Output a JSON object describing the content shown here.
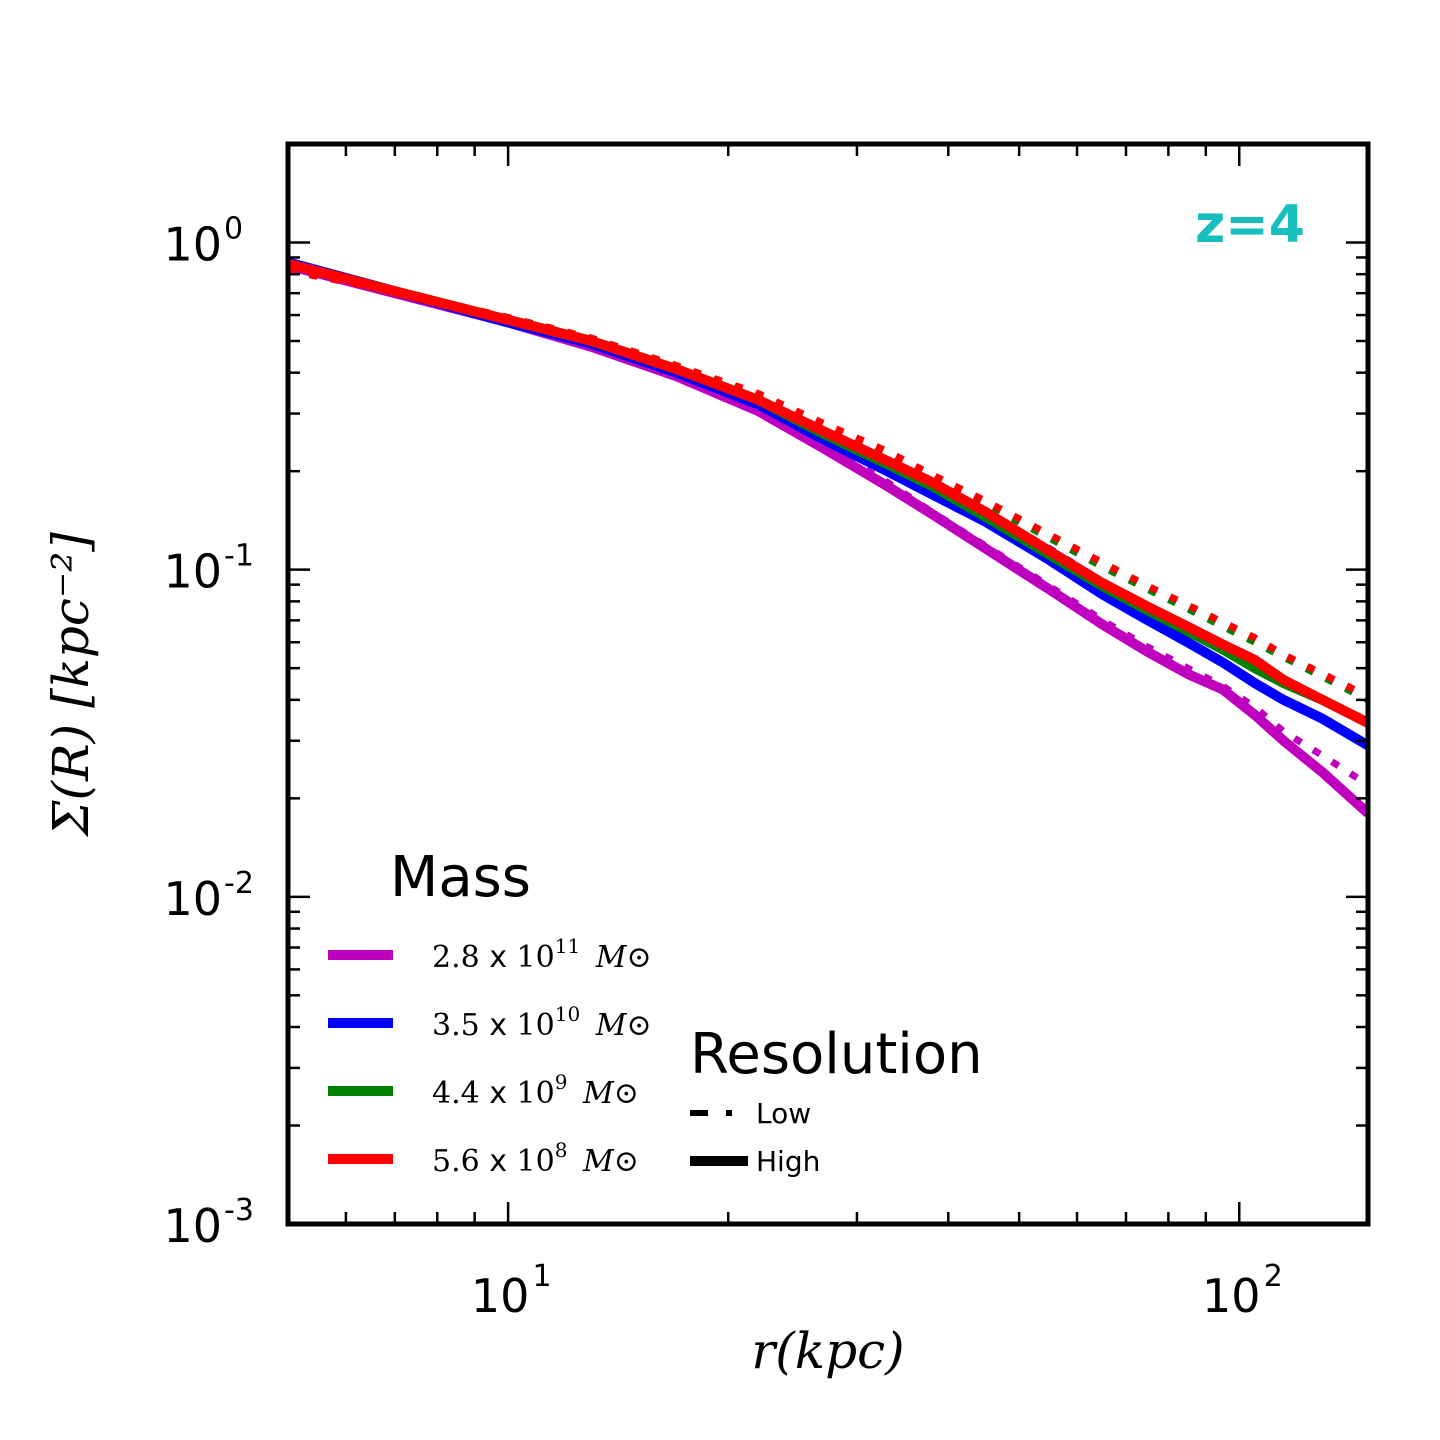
{
  "chart_data": {
    "type": "line",
    "title": "",
    "annotation": {
      "text": "z=4",
      "color": "#17bebe"
    },
    "xlabel": "r(kpc)",
    "ylabel": "Σ(R) [kpc⁻²]",
    "xscale": "log",
    "yscale": "log",
    "xlim": [
      5,
      150
    ],
    "ylim": [
      0.001,
      2.0
    ],
    "x_ticks": [
      {
        "value": 10,
        "base": "10",
        "exp": "1"
      },
      {
        "value": 100,
        "base": "10",
        "exp": "2"
      }
    ],
    "y_ticks": [
      {
        "value": 1,
        "base": "10",
        "exp": "0"
      },
      {
        "value": 0.1,
        "base": "10",
        "exp": "-1"
      },
      {
        "value": 0.01,
        "base": "10",
        "exp": "-2"
      },
      {
        "value": 0.001,
        "base": "10",
        "exp": "-3"
      }
    ],
    "legend_mass": {
      "title": "Mass",
      "entries": [
        {
          "mantissa": "2.8",
          "times": "x",
          "base": "10",
          "exp": "11",
          "unit": "M⊙",
          "color": "#bf00bf"
        },
        {
          "mantissa": "3.5",
          "times": "x",
          "base": "10",
          "exp": "10",
          "unit": "M⊙",
          "color": "#0000ff"
        },
        {
          "mantissa": "4.4",
          "times": "x",
          "base": "10",
          "exp": "9",
          "unit": "M⊙",
          "color": "#008000"
        },
        {
          "mantissa": "5.6",
          "times": "x",
          "base": "10",
          "exp": "8",
          "unit": "M⊙",
          "color": "#ff0000"
        }
      ]
    },
    "legend_resolution": {
      "title": "Resolution",
      "entries": [
        {
          "label": "Low",
          "style": "dotted"
        },
        {
          "label": "High",
          "style": "solid"
        }
      ]
    },
    "series": [
      {
        "name": "2.8 x 10^11 Msun High",
        "color": "#bf00bf",
        "style": "solid",
        "x": [
          5,
          7,
          10,
          13,
          17,
          22,
          27,
          33,
          38,
          45,
          55,
          65,
          75,
          85,
          95,
          105,
          115,
          130,
          150
        ],
        "y": [
          0.85,
          0.7,
          0.57,
          0.48,
          0.39,
          0.305,
          0.235,
          0.18,
          0.148,
          0.116,
          0.087,
          0.068,
          0.056,
          0.048,
          0.043,
          0.036,
          0.03,
          0.024,
          0.018
        ]
      },
      {
        "name": "2.8 x 10^11 Msun Low",
        "color": "#bf00bf",
        "style": "dotted",
        "x": [
          5,
          7,
          10,
          13,
          17,
          22,
          27,
          33,
          38,
          45,
          55,
          65,
          75,
          85,
          95,
          105,
          115,
          130,
          150
        ],
        "y": [
          0.83,
          0.7,
          0.58,
          0.49,
          0.4,
          0.31,
          0.24,
          0.185,
          0.15,
          0.118,
          0.089,
          0.07,
          0.058,
          0.05,
          0.044,
          0.038,
          0.032,
          0.027,
          0.022
        ]
      },
      {
        "name": "3.5 x 10^10 Msun High",
        "color": "#0000ff",
        "style": "solid",
        "x": [
          5,
          7,
          10,
          13,
          17,
          22,
          27,
          33,
          38,
          45,
          55,
          65,
          75,
          85,
          95,
          105,
          115,
          130,
          150
        ],
        "y": [
          0.87,
          0.71,
          0.57,
          0.49,
          0.4,
          0.32,
          0.25,
          0.2,
          0.17,
          0.14,
          0.107,
          0.084,
          0.07,
          0.06,
          0.052,
          0.045,
          0.04,
          0.035,
          0.029
        ]
      },
      {
        "name": "3.5 x 10^10 Msun Low",
        "color": "#0000ff",
        "style": "dotted",
        "x": [
          5,
          7,
          10,
          13,
          17,
          22,
          27,
          33,
          38,
          45,
          55,
          65,
          75,
          85,
          95,
          105,
          115,
          130,
          150
        ],
        "y": [
          0.84,
          0.71,
          0.58,
          0.5,
          0.41,
          0.33,
          0.26,
          0.21,
          0.18,
          0.15,
          0.116,
          0.092,
          0.077,
          0.066,
          0.058,
          0.051,
          0.046,
          0.04,
          0.034
        ]
      },
      {
        "name": "4.4 x 10^9 Msun High",
        "color": "#008000",
        "style": "solid",
        "x": [
          5,
          7,
          10,
          13,
          17,
          22,
          27,
          33,
          38,
          45,
          55,
          65,
          75,
          85,
          95,
          105,
          115,
          130,
          150
        ],
        "y": [
          0.86,
          0.71,
          0.58,
          0.5,
          0.41,
          0.33,
          0.26,
          0.21,
          0.18,
          0.145,
          0.111,
          0.089,
          0.075,
          0.065,
          0.057,
          0.05,
          0.045,
          0.04,
          0.034
        ]
      },
      {
        "name": "4.4 x 10^9 Msun Low",
        "color": "#008000",
        "style": "dotted",
        "x": [
          5,
          7,
          10,
          13,
          17,
          22,
          27,
          33,
          38,
          45,
          55,
          65,
          75,
          85,
          95,
          105,
          115,
          130,
          150
        ],
        "y": [
          0.83,
          0.71,
          0.59,
          0.51,
          0.42,
          0.34,
          0.27,
          0.22,
          0.19,
          0.158,
          0.125,
          0.102,
          0.087,
          0.076,
          0.067,
          0.06,
          0.054,
          0.047,
          0.04
        ]
      },
      {
        "name": "5.6 x 10^8 Msun High",
        "color": "#ff0000",
        "style": "solid",
        "x": [
          5,
          7,
          10,
          13,
          17,
          22,
          27,
          33,
          38,
          45,
          55,
          65,
          75,
          85,
          95,
          105,
          115,
          130,
          150
        ],
        "y": [
          0.86,
          0.71,
          0.58,
          0.5,
          0.41,
          0.33,
          0.265,
          0.215,
          0.185,
          0.15,
          0.114,
          0.091,
          0.077,
          0.067,
          0.059,
          0.053,
          0.046,
          0.04,
          0.034
        ]
      },
      {
        "name": "5.6 x 10^8 Msun Low",
        "color": "#ff0000",
        "style": "dotted",
        "x": [
          5,
          7,
          10,
          13,
          17,
          22,
          27,
          33,
          38,
          45,
          55,
          65,
          75,
          85,
          95,
          105,
          115,
          130,
          150
        ],
        "y": [
          0.82,
          0.71,
          0.59,
          0.51,
          0.42,
          0.345,
          0.28,
          0.23,
          0.195,
          0.162,
          0.128,
          0.105,
          0.089,
          0.078,
          0.069,
          0.062,
          0.055,
          0.048,
          0.041
        ]
      }
    ]
  }
}
